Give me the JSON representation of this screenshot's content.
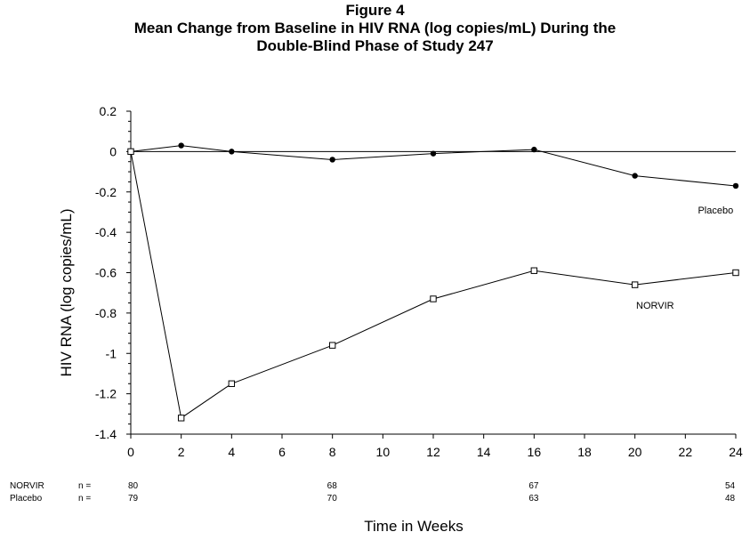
{
  "title_lines": [
    "Figure 4",
    "Mean Change from Baseline in HIV RNA (log copies/mL) During the",
    "Double-Blind Phase of Study 247"
  ],
  "chart_data": {
    "type": "line",
    "title": "Figure 4 Mean Change from Baseline in HIV RNA (log copies/mL) During the Double-Blind Phase of Study 247",
    "xlabel": "Time in Weeks",
    "ylabel": "HIV RNA (log copies/mL)",
    "xlim": [
      0,
      24
    ],
    "ylim": [
      -1.4,
      0.2
    ],
    "x_ticks": [
      0,
      2,
      4,
      6,
      8,
      10,
      12,
      14,
      16,
      18,
      20,
      22,
      24
    ],
    "y_ticks": [
      0.2,
      0,
      -0.2,
      -0.4,
      -0.6,
      -0.8,
      -1,
      -1.2,
      -1.4
    ],
    "x_tick_labels": [
      "0",
      "2",
      "4",
      "6",
      "8",
      "10",
      "12",
      "14",
      "16",
      "18",
      "20",
      "22",
      "24"
    ],
    "y_tick_labels": [
      "0.2",
      "0",
      "-0.2",
      "-0.4",
      "-0.6",
      "-0.8",
      "-1",
      "-1.2",
      "-1.4"
    ],
    "reference_line_y": 0,
    "grid": false,
    "series": [
      {
        "name": "Placebo",
        "marker": "filled-circle",
        "color": "#000000",
        "x": [
          0,
          2,
          4,
          8,
          12,
          16,
          20,
          24
        ],
        "y": [
          0.0,
          0.03,
          0.0,
          -0.04,
          -0.01,
          0.01,
          -0.12,
          -0.17
        ]
      },
      {
        "name": "NORVIR",
        "marker": "open-square",
        "color": "#000000",
        "x": [
          0,
          2,
          4,
          8,
          12,
          16,
          20,
          24
        ],
        "y": [
          0.0,
          -1.32,
          -1.15,
          -0.96,
          -0.73,
          -0.59,
          -0.66,
          -0.6
        ]
      }
    ],
    "n_table": {
      "weeks": [
        0,
        8,
        16,
        24
      ],
      "rows": [
        {
          "group": "NORVIR",
          "prefix": "n =",
          "values": [
            "80",
            "68",
            "67",
            "54"
          ]
        },
        {
          "group": "Placebo",
          "prefix": "n =",
          "values": [
            "79",
            "70",
            "63",
            "48"
          ]
        }
      ]
    }
  }
}
